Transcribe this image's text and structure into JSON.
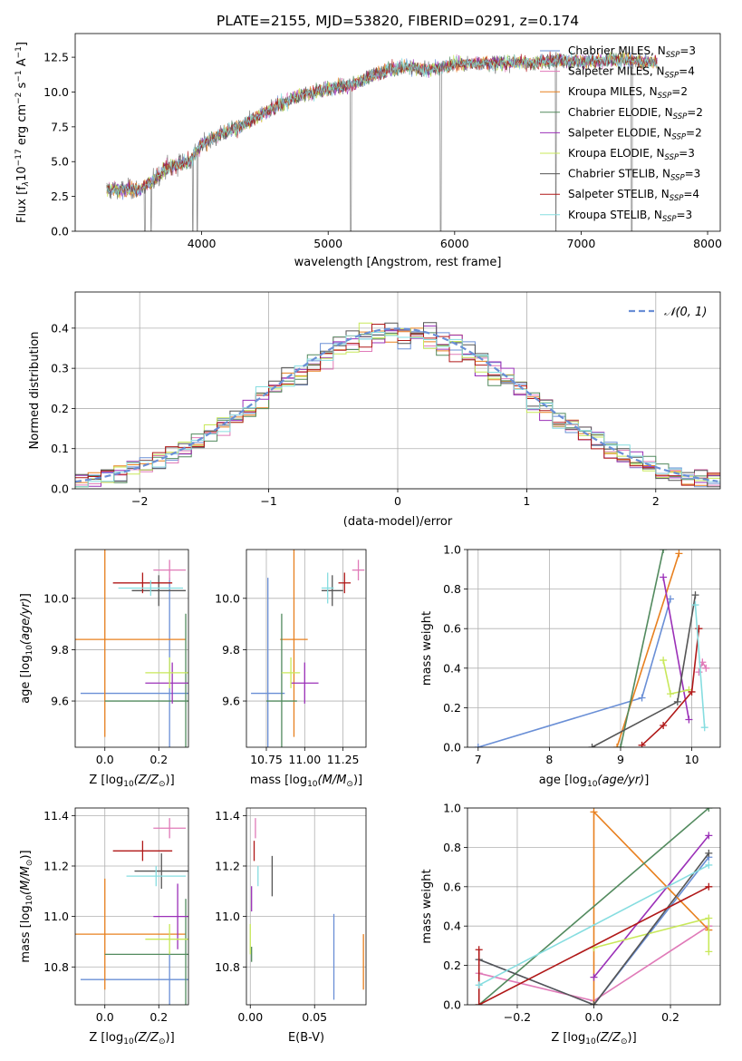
{
  "figure_title": "PLATE=2155, MJD=53820, FIBERID=0291, z=0.174",
  "colors": {
    "Chabrier MILES": "#6a8fd6",
    "Salpeter MILES": "#e07ab8",
    "Kroupa MILES": "#e8801f",
    "Chabrier ELODIE": "#528a5e",
    "Salpeter ELODIE": "#9b30b8",
    "Kroupa ELODIE": "#c8e85a",
    "Chabrier STELIB": "#555555",
    "Salpeter STELIB": "#b01818",
    "Kroupa STELIB": "#86dde0",
    "data": "#808080",
    "normal": "#6a8fd6",
    "grid": "#b0b0b0"
  },
  "chart_data": [
    {
      "id": "spectrum",
      "type": "line",
      "title": "PLATE=2155, MJD=53820, FIBERID=0291, z=0.174",
      "xlabel": "wavelength [Angstrom, rest frame]",
      "ylabel": "Flux [f_λ10^-17 erg cm^-2 s^-1 A^-1]",
      "xlim": [
        3000,
        8100
      ],
      "ylim": [
        0,
        14.2
      ],
      "xticks": [
        4000,
        5000,
        6000,
        7000,
        8000
      ],
      "yticks": [
        0.0,
        2.5,
        5.0,
        7.5,
        10.0,
        12.5
      ],
      "grid": false,
      "legend_position": "top-right",
      "continuum_points": [
        [
          3250,
          3.0
        ],
        [
          3500,
          3.0
        ],
        [
          3600,
          3.5
        ],
        [
          3700,
          4.4
        ],
        [
          3800,
          4.8
        ],
        [
          3900,
          5.0
        ],
        [
          4000,
          6.2
        ],
        [
          4150,
          7.0
        ],
        [
          4300,
          7.5
        ],
        [
          4450,
          8.3
        ],
        [
          4600,
          9.0
        ],
        [
          4800,
          9.8
        ],
        [
          5000,
          10.2
        ],
        [
          5200,
          10.6
        ],
        [
          5400,
          11.4
        ],
        [
          5600,
          11.8
        ],
        [
          5800,
          11.6
        ],
        [
          6000,
          12.0
        ],
        [
          6200,
          12.1
        ],
        [
          6400,
          12.1
        ],
        [
          6600,
          12.1
        ],
        [
          6800,
          12.3
        ],
        [
          7000,
          12.2
        ],
        [
          7200,
          12.3
        ],
        [
          7400,
          12.3
        ],
        [
          7600,
          12.1
        ]
      ],
      "series": [
        {
          "name": "Chabrier MILES, N_SSP=3"
        },
        {
          "name": "Salpeter MILES, N_SSP=4"
        },
        {
          "name": "Kroupa MILES, N_SSP=2"
        },
        {
          "name": "Chabrier ELODIE, N_SSP=2"
        },
        {
          "name": "Salpeter ELODIE, N_SSP=2"
        },
        {
          "name": "Kroupa ELODIE, N_SSP=3"
        },
        {
          "name": "Chabrier STELIB, N_SSP=3"
        },
        {
          "name": "Salpeter STELIB, N_SSP=4"
        },
        {
          "name": "Kroupa STELIB, N_SSP=3"
        }
      ]
    },
    {
      "id": "residuals",
      "type": "line",
      "xlabel": "(data-model)/error",
      "ylabel": "Normed distribution",
      "xlim": [
        -2.5,
        2.5
      ],
      "ylim": [
        0,
        0.49
      ],
      "xticks": [
        -2,
        -1,
        0,
        1,
        2
      ],
      "yticks": [
        0.0,
        0.1,
        0.2,
        0.3,
        0.4
      ],
      "grid": true,
      "legend": "N(0, 1)",
      "legend_position": "top-right",
      "normal_mean": 0,
      "normal_sigma": 1
    },
    {
      "id": "age_vs_Z",
      "type": "scatter",
      "xlabel": "Z [log10(Z/Z☉)]",
      "ylabel": "age [log10(age/yr)]",
      "xlim": [
        -0.11,
        0.31
      ],
      "ylim": [
        9.42,
        10.19
      ],
      "xticks": [
        0.0,
        0.2
      ],
      "yticks": [
        9.6,
        9.8,
        10.0
      ],
      "grid": true,
      "points": [
        {
          "series": "Chabrier MILES",
          "x": 0.24,
          "xerr": 0.33,
          "y": 9.63,
          "yerr": 0.45
        },
        {
          "series": "Salpeter MILES",
          "x": 0.24,
          "xerr": 0.06,
          "y": 10.11,
          "yerr": 0.04
        },
        {
          "series": "Kroupa MILES",
          "x": 0.0,
          "xerr": 0.3,
          "y": 9.84,
          "yerr": 0.38
        },
        {
          "series": "Chabrier ELODIE",
          "x": 0.3,
          "xerr": 0.3,
          "y": 9.6,
          "yerr": 0.34
        },
        {
          "series": "Salpeter ELODIE",
          "x": 0.25,
          "xerr": 0.1,
          "y": 9.67,
          "yerr": 0.08
        },
        {
          "series": "Kroupa ELODIE",
          "x": 0.24,
          "xerr": 0.09,
          "y": 9.71,
          "yerr": 0.06
        },
        {
          "series": "Chabrier STELIB",
          "x": 0.2,
          "xerr": 0.1,
          "y": 10.03,
          "yerr": 0.06
        },
        {
          "series": "Salpeter STELIB",
          "x": 0.14,
          "xerr": 0.11,
          "y": 10.06,
          "yerr": 0.04
        },
        {
          "series": "Kroupa STELIB",
          "x": 0.17,
          "xerr": 0.12,
          "y": 10.04,
          "yerr": 0.03
        }
      ]
    },
    {
      "id": "age_vs_mass",
      "type": "scatter",
      "xlabel": "mass [log10(M/M☉)]",
      "ylabel": "",
      "xlim": [
        10.62,
        11.4
      ],
      "ylim": [
        9.42,
        10.19
      ],
      "xticks": [
        10.75,
        11.0,
        11.25
      ],
      "yticks": [
        9.6,
        9.8,
        10.0
      ],
      "grid": true,
      "points": [
        {
          "series": "Chabrier MILES",
          "x": 10.76,
          "xerr": 0.11,
          "y": 9.63,
          "yerr": 0.45
        },
        {
          "series": "Salpeter MILES",
          "x": 11.35,
          "xerr": 0.04,
          "y": 10.11,
          "yerr": 0.04
        },
        {
          "series": "Kroupa MILES",
          "x": 10.93,
          "xerr": 0.09,
          "y": 9.84,
          "yerr": 0.38
        },
        {
          "series": "Chabrier ELODIE",
          "x": 10.85,
          "xerr": 0.1,
          "y": 9.6,
          "yerr": 0.34
        },
        {
          "series": "Salpeter ELODIE",
          "x": 11.0,
          "xerr": 0.09,
          "y": 9.67,
          "yerr": 0.08
        },
        {
          "series": "Kroupa ELODIE",
          "x": 10.91,
          "xerr": 0.06,
          "y": 9.71,
          "yerr": 0.06
        },
        {
          "series": "Chabrier STELIB",
          "x": 11.18,
          "xerr": 0.07,
          "y": 10.03,
          "yerr": 0.06
        },
        {
          "series": "Salpeter STELIB",
          "x": 11.26,
          "xerr": 0.04,
          "y": 10.06,
          "yerr": 0.04
        },
        {
          "series": "Kroupa STELIB",
          "x": 11.15,
          "xerr": 0.04,
          "y": 10.04,
          "yerr": 0.06
        }
      ]
    },
    {
      "id": "weight_vs_age",
      "type": "line",
      "xlabel": "age [log10(age/yr)]",
      "ylabel": "mass weight",
      "xlim": [
        6.85,
        10.4
      ],
      "ylim": [
        0,
        1.0
      ],
      "xticks": [
        7,
        8,
        9,
        10
      ],
      "yticks": [
        0.0,
        0.2,
        0.4,
        0.6,
        0.8,
        1.0
      ],
      "grid": true,
      "series": [
        {
          "name": "Chabrier MILES",
          "points": [
            [
              7.0,
              0.0
            ],
            [
              9.3,
              0.25
            ],
            [
              9.7,
              0.75
            ]
          ]
        },
        {
          "name": "Salpeter MILES",
          "points": [
            [
              10.1,
              0.38
            ],
            [
              10.15,
              0.43
            ],
            [
              10.2,
              0.4
            ]
          ]
        },
        {
          "name": "Kroupa MILES",
          "points": [
            [
              8.95,
              0.0
            ],
            [
              9.82,
              0.98
            ]
          ]
        },
        {
          "name": "Chabrier ELODIE",
          "points": [
            [
              9.0,
              0.0
            ],
            [
              9.6,
              1.0
            ]
          ]
        },
        {
          "name": "Salpeter ELODIE",
          "points": [
            [
              9.6,
              0.86
            ],
            [
              9.96,
              0.14
            ]
          ]
        },
        {
          "name": "Kroupa ELODIE",
          "points": [
            [
              9.6,
              0.44
            ],
            [
              9.7,
              0.27
            ],
            [
              9.96,
              0.29
            ]
          ]
        },
        {
          "name": "Chabrier STELIB",
          "points": [
            [
              8.6,
              0.0
            ],
            [
              9.8,
              0.23
            ],
            [
              10.05,
              0.77
            ]
          ]
        },
        {
          "name": "Salpeter STELIB",
          "points": [
            [
              9.3,
              0.01
            ],
            [
              9.6,
              0.11
            ],
            [
              10.0,
              0.28
            ],
            [
              10.1,
              0.6
            ]
          ]
        },
        {
          "name": "Kroupa STELIB",
          "points": [
            [
              10.05,
              0.72
            ],
            [
              10.18,
              0.1
            ]
          ]
        }
      ]
    },
    {
      "id": "mass_vs_Z",
      "type": "scatter",
      "xlabel": "Z [log10(Z/Z☉)]",
      "ylabel": "mass [log10(M/M☉)]",
      "xlim": [
        -0.11,
        0.31
      ],
      "ylim": [
        10.65,
        11.43
      ],
      "xticks": [
        0.0,
        0.2
      ],
      "yticks": [
        10.8,
        11.0,
        11.2,
        11.4
      ],
      "grid": true,
      "points": [
        {
          "series": "Chabrier MILES",
          "x": 0.24,
          "xerr": 0.33,
          "y": 10.75,
          "yerr": 0.11
        },
        {
          "series": "Salpeter MILES",
          "x": 0.24,
          "xerr": 0.06,
          "y": 11.35,
          "yerr": 0.04
        },
        {
          "series": "Kroupa MILES",
          "x": 0.0,
          "xerr": 0.3,
          "y": 10.93,
          "yerr": 0.22
        },
        {
          "series": "Chabrier ELODIE",
          "x": 0.3,
          "xerr": 0.3,
          "y": 10.85,
          "yerr": 0.22
        },
        {
          "series": "Salpeter ELODIE",
          "x": 0.27,
          "xerr": 0.09,
          "y": 11.0,
          "yerr": 0.13
        },
        {
          "series": "Kroupa ELODIE",
          "x": 0.24,
          "xerr": 0.09,
          "y": 10.91,
          "yerr": 0.06
        },
        {
          "series": "Chabrier STELIB",
          "x": 0.21,
          "xerr": 0.1,
          "y": 11.18,
          "yerr": 0.07
        },
        {
          "series": "Salpeter STELIB",
          "x": 0.14,
          "xerr": 0.11,
          "y": 11.26,
          "yerr": 0.04
        },
        {
          "series": "Kroupa STELIB",
          "x": 0.19,
          "xerr": 0.11,
          "y": 11.16,
          "yerr": 0.04
        }
      ]
    },
    {
      "id": "mass_vs_ebv",
      "type": "scatter",
      "xlabel": "E(B-V)",
      "ylabel": "",
      "xlim": [
        -0.003,
        0.09
      ],
      "ylim": [
        10.65,
        11.43
      ],
      "xticks": [
        0.0,
        0.05
      ],
      "yticks": [
        10.8,
        11.0,
        11.2,
        11.4
      ],
      "grid": true,
      "points": [
        {
          "series": "Chabrier MILES",
          "x": 0.065,
          "y": 10.84,
          "yerr": 0.17
        },
        {
          "series": "Salpeter MILES",
          "x": 0.004,
          "y": 11.35,
          "yerr": 0.04
        },
        {
          "series": "Kroupa MILES",
          "x": 0.088,
          "y": 10.82,
          "yerr": 0.11
        },
        {
          "series": "Chabrier ELODIE",
          "x": 0.001,
          "y": 10.85,
          "yerr": 0.03
        },
        {
          "series": "Salpeter ELODIE",
          "x": 0.001,
          "y": 11.07,
          "yerr": 0.05
        },
        {
          "series": "Kroupa ELODIE",
          "x": 0.0,
          "y": 10.91,
          "yerr": 0.06
        },
        {
          "series": "Chabrier STELIB",
          "x": 0.017,
          "y": 11.16,
          "yerr": 0.08
        },
        {
          "series": "Salpeter STELIB",
          "x": 0.003,
          "y": 11.26,
          "yerr": 0.04
        },
        {
          "series": "Kroupa STELIB",
          "x": 0.006,
          "y": 11.16,
          "yerr": 0.04
        }
      ]
    },
    {
      "id": "weight_vs_Z",
      "type": "line",
      "xlabel": "Z [log10(Z/Z☉)]",
      "ylabel": "mass weight",
      "xlim": [
        -0.33,
        0.33
      ],
      "ylim": [
        0,
        1.0
      ],
      "xticks": [
        -0.2,
        0.0,
        0.2
      ],
      "yticks": [
        0.0,
        0.2,
        0.4,
        0.6,
        0.8,
        1.0
      ],
      "grid": true,
      "series": [
        {
          "name": "Chabrier MILES",
          "points": [
            [
              -0.3,
              0.23
            ],
            [
              0.0,
              0.0
            ],
            [
              0.3,
              0.75
            ]
          ]
        },
        {
          "name": "Salpeter MILES",
          "points": [
            [
              -0.3,
              0.16
            ],
            [
              0.0,
              0.02
            ],
            [
              0.3,
              0.4
            ]
          ]
        },
        {
          "name": "Kroupa MILES",
          "points": [
            [
              0.0,
              0.0
            ],
            [
              0.0,
              0.98
            ],
            [
              0.3,
              0.38
            ]
          ]
        },
        {
          "name": "Chabrier ELODIE",
          "points": [
            [
              -0.3,
              0.0
            ],
            [
              0.3,
              1.0
            ]
          ]
        },
        {
          "name": "Salpeter ELODIE",
          "points": [
            [
              0.0,
              0.14
            ],
            [
              0.3,
              0.86
            ]
          ]
        },
        {
          "name": "Kroupa ELODIE",
          "points": [
            [
              0.0,
              0.29
            ],
            [
              0.3,
              0.44
            ],
            [
              0.3,
              0.27
            ]
          ]
        },
        {
          "name": "Chabrier STELIB",
          "points": [
            [
              -0.3,
              0.23
            ],
            [
              0.0,
              0.0
            ],
            [
              0.3,
              0.77
            ]
          ]
        },
        {
          "name": "Salpeter STELIB",
          "points": [
            [
              -0.3,
              0.28
            ],
            [
              -0.3,
              0.0
            ],
            [
              0.3,
              0.6
            ]
          ]
        },
        {
          "name": "Kroupa STELIB",
          "points": [
            [
              -0.3,
              0.1
            ],
            [
              0.3,
              0.71
            ]
          ]
        }
      ]
    }
  ]
}
